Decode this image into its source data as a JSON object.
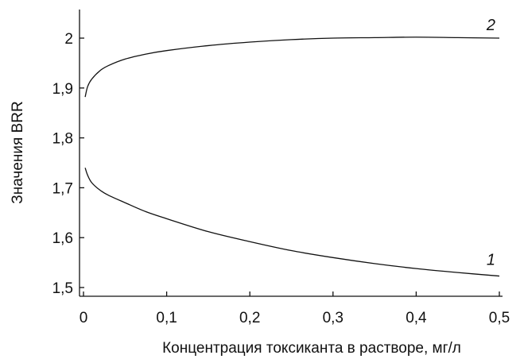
{
  "chart_data": {
    "type": "line",
    "title": "",
    "xlabel": "Концентрация токсиканта в растворе, мг/л",
    "ylabel": "Значения BRR",
    "xlim": [
      0,
      0.5
    ],
    "ylim": [
      1.5,
      2.0
    ],
    "grid": false,
    "x_ticks": [
      0,
      0.1,
      0.2,
      0.3,
      0.4,
      0.5
    ],
    "x_tick_labels": [
      "0",
      "0,1",
      "0,2",
      "0,3",
      "0,4",
      "0,5"
    ],
    "y_ticks": [
      1.5,
      1.6,
      1.7,
      1.8,
      1.9,
      2.0
    ],
    "y_tick_labels": [
      "1,5",
      "1,6",
      "1,7",
      "1,8",
      "1,9",
      "2"
    ],
    "series": [
      {
        "name": "1",
        "x": [
          0.002,
          0.005,
          0.01,
          0.02,
          0.03,
          0.05,
          0.075,
          0.1,
          0.15,
          0.2,
          0.25,
          0.3,
          0.35,
          0.4,
          0.45,
          0.5
        ],
        "y": [
          1.74,
          1.725,
          1.71,
          1.695,
          1.685,
          1.67,
          1.652,
          1.638,
          1.612,
          1.592,
          1.574,
          1.56,
          1.548,
          1.538,
          1.53,
          1.523
        ]
      },
      {
        "name": "2",
        "x": [
          0.002,
          0.005,
          0.01,
          0.02,
          0.03,
          0.05,
          0.075,
          0.1,
          0.15,
          0.2,
          0.25,
          0.3,
          0.35,
          0.4,
          0.45,
          0.5
        ],
        "y": [
          1.882,
          1.903,
          1.918,
          1.935,
          1.945,
          1.958,
          1.968,
          1.975,
          1.985,
          1.992,
          1.997,
          2.0,
          2.001,
          2.002,
          2.001,
          2.0
        ]
      }
    ]
  }
}
